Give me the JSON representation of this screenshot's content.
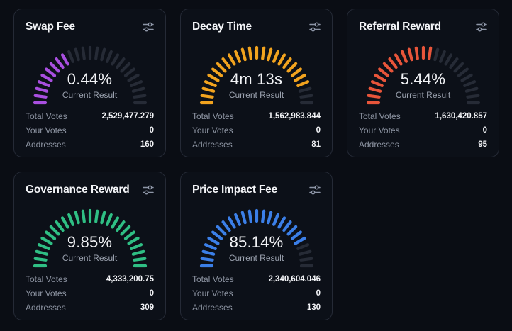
{
  "stat_labels": {
    "total_votes": "Total Votes",
    "your_votes": "Your Votes",
    "addresses": "Addresses"
  },
  "gauge_caption": "Current Result",
  "track_color": "#262b36",
  "cards": [
    {
      "title": "Swap Fee",
      "value": "0.44%",
      "fill_fraction": 0.36,
      "color": "#a94fe0",
      "total_votes": "2,529,477.279",
      "your_votes": "0",
      "addresses": "160",
      "icon": "sliders-icon"
    },
    {
      "title": "Decay Time",
      "value": "4m 13s",
      "fill_fraction": 0.87,
      "color": "#f2a31e",
      "total_votes": "1,562,983.844",
      "your_votes": "0",
      "addresses": "81",
      "icon": "sliders-icon"
    },
    {
      "title": "Referral Reward",
      "value": "5.44%",
      "fill_fraction": 0.55,
      "color": "#e8553a",
      "total_votes": "1,630,420.857",
      "your_votes": "0",
      "addresses": "95",
      "icon": "sliders-icon"
    },
    {
      "title": "Governance Reward",
      "value": "9.85%",
      "fill_fraction": 1.0,
      "color": "#2fbf84",
      "total_votes": "4,333,200.75",
      "your_votes": "0",
      "addresses": "309",
      "icon": "sliders-icon"
    },
    {
      "title": "Price Impact Fee",
      "value": "85.14%",
      "fill_fraction": 0.85,
      "color": "#3b7fe8",
      "total_votes": "2,340,604.046",
      "your_votes": "0",
      "addresses": "130",
      "icon": "sliders-icon"
    }
  ]
}
